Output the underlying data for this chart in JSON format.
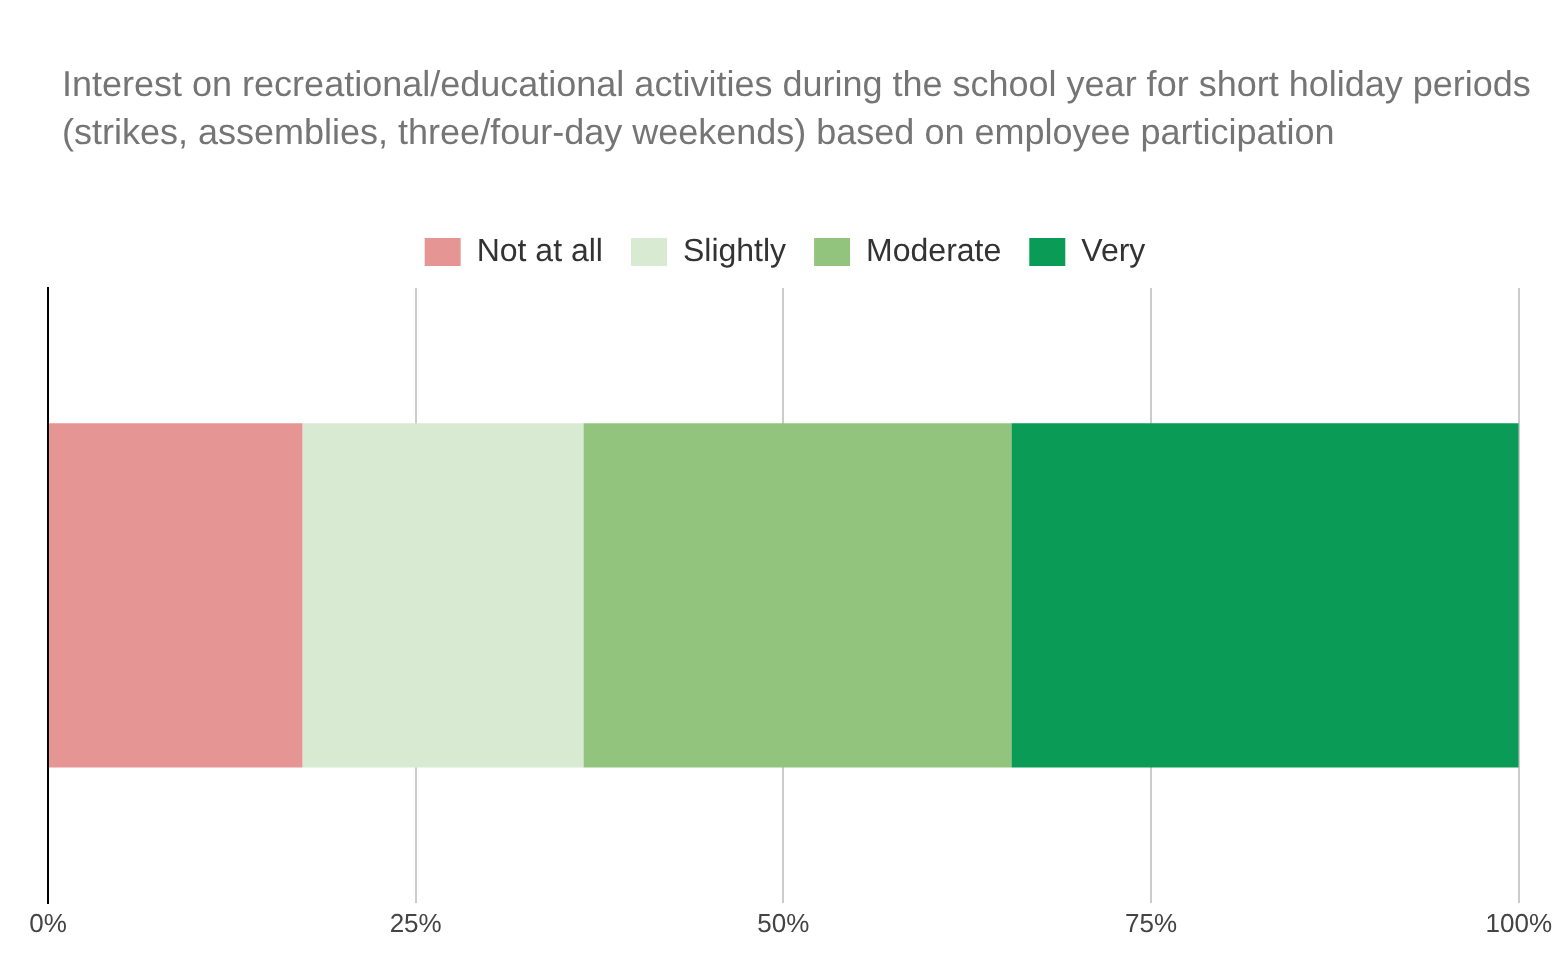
{
  "chart_data": {
    "type": "bar",
    "orientation": "horizontal",
    "stacked": true,
    "title": "Interest on recreational/educational activities during the school year for short holiday periods (strikes, assemblies, three/four-day weekends) based on employee participation",
    "categories": [
      null
    ],
    "series": [
      {
        "name": "Not at all",
        "color": "#e69595",
        "values": [
          17.3
        ]
      },
      {
        "name": "Slightly",
        "color": "#d9ead3",
        "values": [
          19.1
        ]
      },
      {
        "name": "Moderate",
        "color": "#93c47d",
        "values": [
          29.1
        ]
      },
      {
        "name": "Very",
        "color": "#0a9b56",
        "values": [
          34.5
        ]
      }
    ],
    "xlim": [
      0,
      100
    ],
    "xticks": [
      {
        "value": 0,
        "label": "0%"
      },
      {
        "value": 25,
        "label": "25%"
      },
      {
        "value": 50,
        "label": "50%"
      },
      {
        "value": 75,
        "label": "75%"
      },
      {
        "value": 100,
        "label": "100%"
      }
    ],
    "grid": "x",
    "legend": "top"
  }
}
